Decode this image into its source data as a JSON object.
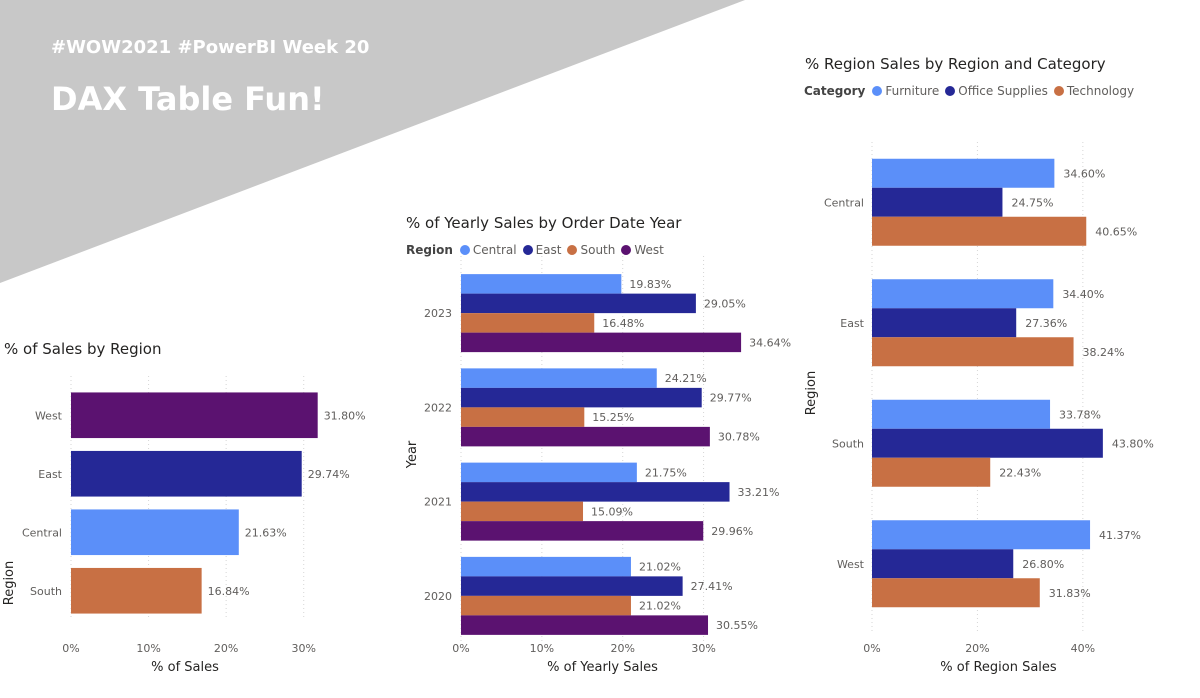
{
  "header": {
    "subtitle": "#WOW2021 #PowerBI Week 20",
    "title": "DAX Table Fun!"
  },
  "colors": {
    "Central": "#5b8ff9",
    "East": "#252896",
    "South": "#c87044",
    "West": "#5b1270",
    "Furniture": "#5b8ff9",
    "Office Supplies": "#252896",
    "Technology": "#c87044",
    "banner": "#c8c8c8"
  },
  "chart_data": [
    {
      "id": "sales-by-region",
      "type": "bar",
      "orientation": "horizontal",
      "title": "% of Sales by Region",
      "xlabel": "% of Sales",
      "ylabel": "Region",
      "categories": [
        "West",
        "East",
        "Central",
        "South"
      ],
      "values": [
        31.8,
        29.74,
        21.63,
        16.84
      ],
      "labels": [
        "31.80%",
        "29.74%",
        "21.63%",
        "16.84%"
      ],
      "bar_colors": [
        "#5b1270",
        "#252896",
        "#5b8ff9",
        "#c87044"
      ],
      "xlim": [
        0,
        33
      ],
      "xticks": [
        0,
        10,
        20,
        30
      ],
      "xtick_labels": [
        "0%",
        "10%",
        "20%",
        "30%"
      ],
      "grid": "vertical dotted"
    },
    {
      "id": "yearly-sales",
      "type": "bar",
      "orientation": "horizontal",
      "title": "% of Yearly Sales by Order Date Year",
      "xlabel": "% of Yearly Sales",
      "ylabel": "Year",
      "legend_title": "Region",
      "categories": [
        "2023",
        "2022",
        "2021",
        "2020"
      ],
      "series": [
        {
          "name": "Central",
          "color": "#5b8ff9",
          "values": [
            19.83,
            24.21,
            21.75,
            21.02
          ],
          "labels": [
            "19.83%",
            "24.21%",
            "21.75%",
            "21.02%"
          ]
        },
        {
          "name": "East",
          "color": "#252896",
          "values": [
            29.05,
            29.77,
            33.21,
            27.41
          ],
          "labels": [
            "29.05%",
            "29.77%",
            "33.21%",
            "27.41%"
          ]
        },
        {
          "name": "South",
          "color": "#c87044",
          "values": [
            16.48,
            15.25,
            15.09,
            21.02
          ],
          "labels": [
            "16.48%",
            "15.25%",
            "15.09%",
            "21.02%"
          ]
        },
        {
          "name": "West",
          "color": "#5b1270",
          "values": [
            34.64,
            30.78,
            29.96,
            30.55
          ],
          "labels": [
            "34.64%",
            "30.78%",
            "29.96%",
            "30.55%"
          ]
        }
      ],
      "xlim": [
        0,
        35
      ],
      "xticks": [
        0,
        10,
        20,
        30
      ],
      "xtick_labels": [
        "0%",
        "10%",
        "20%",
        "30%"
      ],
      "grid": "vertical dotted"
    },
    {
      "id": "region-category",
      "type": "bar",
      "orientation": "horizontal",
      "title": "% Region Sales by Region and Category",
      "xlabel": "% of Region Sales",
      "ylabel": "Region",
      "legend_title": "Category",
      "categories": [
        "Central",
        "East",
        "South",
        "West"
      ],
      "series": [
        {
          "name": "Furniture",
          "color": "#5b8ff9",
          "values": [
            34.6,
            34.4,
            33.78,
            41.37
          ],
          "labels": [
            "34.60%",
            "34.40%",
            "33.78%",
            "41.37%"
          ]
        },
        {
          "name": "Office Supplies",
          "color": "#252896",
          "values": [
            24.75,
            27.36,
            43.8,
            26.8
          ],
          "labels": [
            "24.75%",
            "27.36%",
            "43.80%",
            "26.80%"
          ]
        },
        {
          "name": "Technology",
          "color": "#c87044",
          "values": [
            40.65,
            38.24,
            22.43,
            31.83
          ],
          "labels": [
            "40.65%",
            "38.24%",
            "22.43%",
            "31.83%"
          ]
        }
      ],
      "xlim": [
        0,
        48
      ],
      "xticks": [
        0,
        20,
        40
      ],
      "xtick_labels": [
        "0%",
        "20%",
        "40%"
      ],
      "grid": "vertical dotted"
    }
  ]
}
